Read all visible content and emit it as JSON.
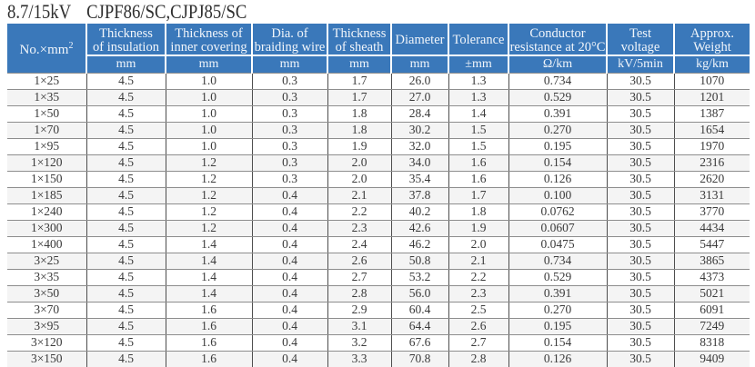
{
  "title": {
    "part1": "8.7/15kV",
    "part2": "CJPF86/SC,CJPJ85/SC"
  },
  "colors": {
    "header_background": "#3a78ba",
    "header_text": "#ffffff",
    "row_stripe": "#f4f4f4",
    "grid_horizontal": "#8d8d8d",
    "grid_vertical": "#4e4e4e",
    "body_text": "#3a3a3a",
    "title_text": "#2e2e2e"
  },
  "table": {
    "columns": [
      {
        "line1": "No.×mm",
        "sup": "2",
        "line2": "",
        "unit": ""
      },
      {
        "line1": "Thickness",
        "line2": "of insulation",
        "unit": "mm"
      },
      {
        "line1": "Thickness of",
        "line2": "inner covering",
        "unit": "mm"
      },
      {
        "line1": "Dia. of",
        "line2": "braiding wire",
        "unit": "mm"
      },
      {
        "line1": "Thickness",
        "line2": "of sheath",
        "unit": "mm"
      },
      {
        "line1": "Diameter",
        "line2": "",
        "unit": "mm"
      },
      {
        "line1": "Tolerance",
        "line2": "",
        "unit": "±mm"
      },
      {
        "line1": "Conductor",
        "line2": "resistance at 20°C",
        "unit": "Ω/km"
      },
      {
        "line1": "Test",
        "line2": "voltage",
        "unit": "kV/5min"
      },
      {
        "line1": "Approx.",
        "line2": "Weight",
        "unit": "kg/km"
      }
    ],
    "rows": [
      [
        "1×25",
        "4.5",
        "1.0",
        "0.3",
        "1.7",
        "26.0",
        "1.3",
        "0.734",
        "30.5",
        "1070"
      ],
      [
        "1×35",
        "4.5",
        "1.0",
        "0.3",
        "1.7",
        "27.0",
        "1.3",
        "0.529",
        "30.5",
        "1201"
      ],
      [
        "1×50",
        "4.5",
        "1.0",
        "0.3",
        "1.8",
        "28.4",
        "1.4",
        "0.391",
        "30.5",
        "1387"
      ],
      [
        "1×70",
        "4.5",
        "1.0",
        "0.3",
        "1.8",
        "30.2",
        "1.5",
        "0.270",
        "30.5",
        "1654"
      ],
      [
        "1×95",
        "4.5",
        "1.0",
        "0.3",
        "1.9",
        "32.0",
        "1.5",
        "0.195",
        "30.5",
        "1970"
      ],
      [
        "1×120",
        "4.5",
        "1.2",
        "0.3",
        "2.0",
        "34.0",
        "1.6",
        "0.154",
        "30.5",
        "2316"
      ],
      [
        "1×150",
        "4.5",
        "1.2",
        "0.3",
        "2.0",
        "35.4",
        "1.6",
        "0.126",
        "30.5",
        "2620"
      ],
      [
        "1×185",
        "4.5",
        "1.2",
        "0.4",
        "2.1",
        "37.8",
        "1.7",
        "0.100",
        "30.5",
        "3131"
      ],
      [
        "1×240",
        "4.5",
        "1.2",
        "0.4",
        "2.2",
        "40.2",
        "1.8",
        "0.0762",
        "30.5",
        "3770"
      ],
      [
        "1×300",
        "4.5",
        "1.2",
        "0.4",
        "2.3",
        "42.6",
        "1.9",
        "0.0607",
        "30.5",
        "4434"
      ],
      [
        "1×400",
        "4.5",
        "1.4",
        "0.4",
        "2.4",
        "46.2",
        "2.0",
        "0.0475",
        "30.5",
        "5447"
      ],
      [
        "3×25",
        "4.5",
        "1.4",
        "0.4",
        "2.6",
        "50.8",
        "2.1",
        "0.734",
        "30.5",
        "3865"
      ],
      [
        "3×35",
        "4.5",
        "1.4",
        "0.4",
        "2.7",
        "53.2",
        "2.2",
        "0.529",
        "30.5",
        "4373"
      ],
      [
        "3×50",
        "4.5",
        "1.4",
        "0.4",
        "2.8",
        "56.0",
        "2.3",
        "0.391",
        "30.5",
        "5021"
      ],
      [
        "3×70",
        "4.5",
        "1.6",
        "0.4",
        "2.9",
        "60.4",
        "2.5",
        "0.270",
        "30.5",
        "6091"
      ],
      [
        "3×95",
        "4.5",
        "1.6",
        "0.4",
        "3.1",
        "64.4",
        "2.6",
        "0.195",
        "30.5",
        "7249"
      ],
      [
        "3×120",
        "4.5",
        "1.6",
        "0.4",
        "3.2",
        "67.6",
        "2.7",
        "0.154",
        "30.5",
        "8318"
      ],
      [
        "3×150",
        "4.5",
        "1.6",
        "0.4",
        "3.3",
        "70.8",
        "2.8",
        "0.126",
        "30.5",
        "9409"
      ]
    ]
  }
}
